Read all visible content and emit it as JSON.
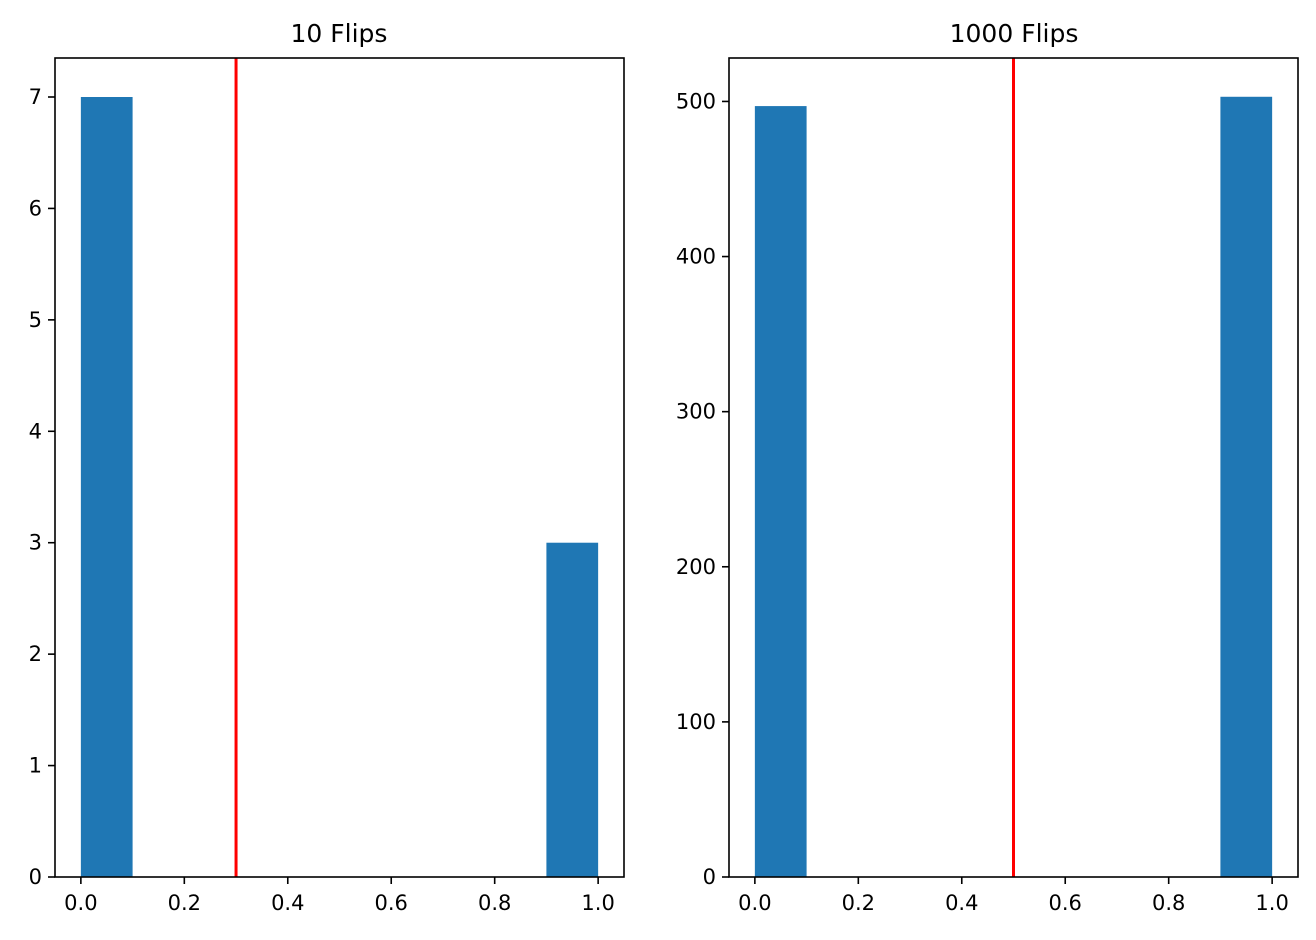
{
  "chart_data": [
    {
      "type": "bar",
      "title": "10 Flips",
      "xlabel": "",
      "ylabel": "",
      "bins": [
        {
          "x_start": 0.0,
          "x_end": 0.1,
          "count": 7
        },
        {
          "x_start": 0.9,
          "x_end": 1.0,
          "count": 3
        }
      ],
      "xlim": [
        -0.05,
        1.05
      ],
      "ylim": [
        0,
        7.35
      ],
      "xticks": [
        "0.0",
        "0.2",
        "0.4",
        "0.6",
        "0.8",
        "1.0"
      ],
      "yticks": [
        "0",
        "1",
        "2",
        "3",
        "4",
        "5",
        "6",
        "7"
      ],
      "vline": {
        "x": 0.3,
        "color": "#ff0000"
      },
      "bar_color": "#1f77b4",
      "grid": false
    },
    {
      "type": "bar",
      "title": "1000 Flips",
      "xlabel": "",
      "ylabel": "",
      "bins": [
        {
          "x_start": 0.0,
          "x_end": 0.1,
          "count": 497
        },
        {
          "x_start": 0.9,
          "x_end": 1.0,
          "count": 503
        }
      ],
      "xlim": [
        -0.05,
        1.05
      ],
      "ylim": [
        0,
        528
      ],
      "xticks": [
        "0.0",
        "0.2",
        "0.4",
        "0.6",
        "0.8",
        "1.0"
      ],
      "yticks": [
        "0",
        "100",
        "200",
        "300",
        "400",
        "500"
      ],
      "vline": {
        "x": 0.5,
        "color": "#ff0000"
      },
      "bar_color": "#1f77b4",
      "grid": false
    }
  ]
}
